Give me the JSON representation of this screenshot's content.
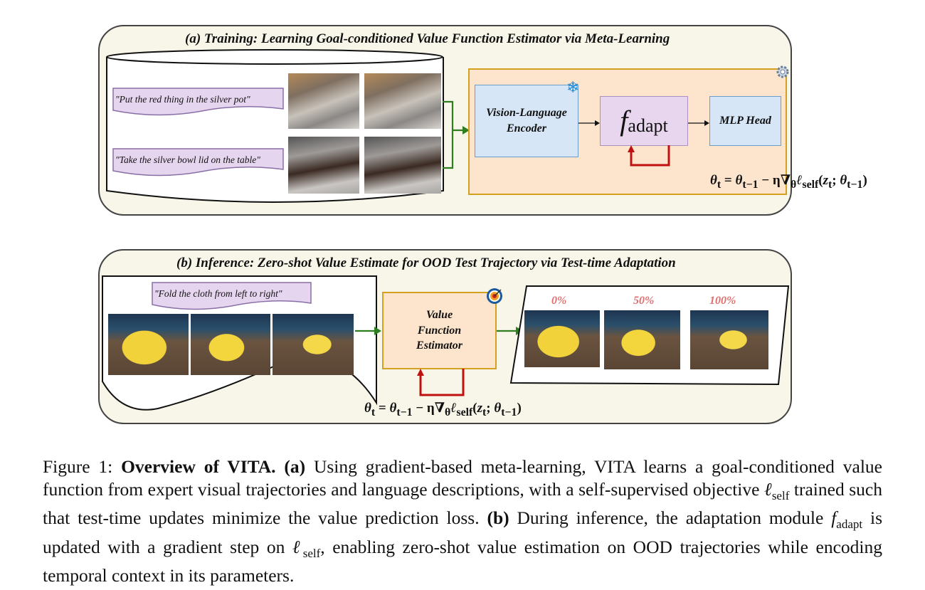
{
  "figure": {
    "panel_a": {
      "title": "(a) Training: Learning Goal-conditioned Value Function Estimator via Meta-Learning",
      "instructions": [
        "\"Put the red thing in the silver pot\"",
        "\"Take the silver bowl lid on the table\""
      ],
      "encoder_label": "Vision-Language Encoder",
      "adapt_label_main": "f",
      "adapt_label_sub": "adapt",
      "head_label": "MLP Head",
      "equation": "θt = θt−1 − η∇θℓself(zt; θt−1)",
      "icons": [
        "snowflake-icon",
        "gear-icon"
      ]
    },
    "panel_b": {
      "title": "(b) Inference: Zero-shot Value Estimate for OOD Test Trajectory via Test-time Adaptation",
      "instruction": "\"Fold the cloth from left to right\"",
      "estimator_label": "Value Function Estimator",
      "progress_labels": [
        "0%",
        "50%",
        "100%"
      ],
      "equation": "θt = θt−1 − η∇θℓself(zt; θt−1)",
      "icons": [
        "target-icon"
      ]
    },
    "colors": {
      "arrow_green": "#2e7d1e",
      "loop_red": "#c01010",
      "box_orange": "#fde5cd",
      "box_blue": "#d6e6f6",
      "box_purple": "#e8d6ee",
      "progress_text": "#e07070"
    }
  },
  "caption": {
    "prefix": "Figure 1: ",
    "title": "Overview of VITA.",
    "a_tag": "(a)",
    "a_text1": " Using gradient-based meta-learning, VITA learns a goal-conditioned value function from expert visual trajectories and language descriptions, with a self-supervised objective ",
    "ell": "ℓ",
    "self_sub": "self",
    "a_text2": " trained such that test-time updates minimize the value prediction loss. ",
    "b_tag": "(b)",
    "b_text1": " During inference, the adaptation module ",
    "f": "f",
    "adapt_sub": "adapt",
    "b_text2": " is updated with a gradient step on ",
    "b_text3": ", enabling zero-shot value estimation on OOD trajectories while encoding temporal context in its parameters."
  }
}
